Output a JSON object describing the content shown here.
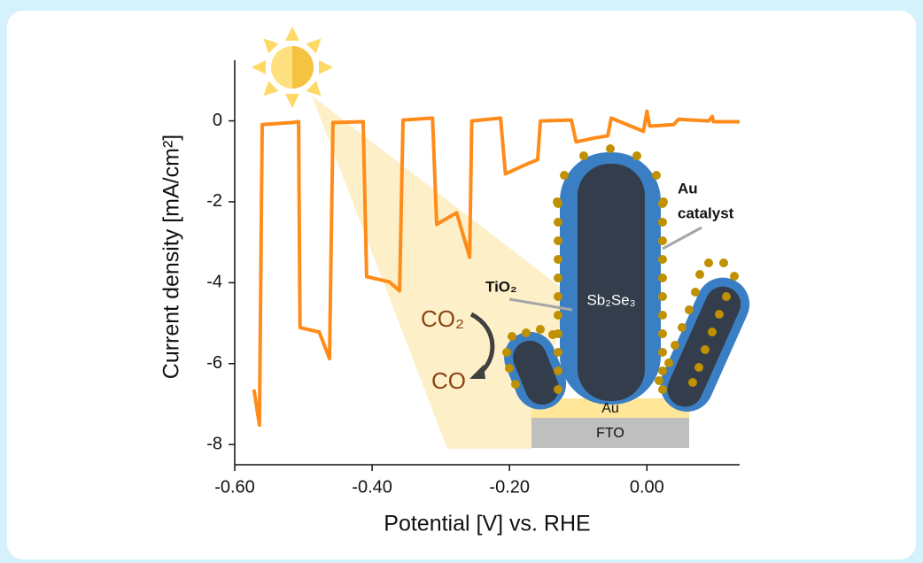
{
  "chart_data": {
    "type": "line",
    "xlabel": "Potential [V] vs. RHE",
    "ylabel": "Current density [mA/cm²]",
    "color": "#ff8c1a",
    "x": [
      -0.572,
      -0.564,
      -0.56,
      -0.516,
      -0.507,
      -0.505,
      -0.477,
      -0.462,
      -0.457,
      -0.413,
      -0.408,
      -0.375,
      -0.36,
      -0.355,
      -0.312,
      -0.306,
      -0.277,
      -0.258,
      -0.255,
      -0.213,
      -0.206,
      -0.178,
      -0.159,
      -0.155,
      -0.11,
      -0.103,
      -0.075,
      -0.057,
      -0.052,
      -0.005,
      0.0,
      0.004,
      0.039,
      0.046,
      0.09,
      0.095,
      0.097,
      0.135
    ],
    "values": [
      -6.64,
      -7.52,
      -0.09,
      -0.04,
      -0.02,
      -5.11,
      -5.22,
      -5.88,
      -0.04,
      -0.02,
      -3.85,
      -3.98,
      -4.2,
      0.02,
      0.07,
      -2.56,
      -2.27,
      -3.37,
      0.0,
      0.07,
      -1.31,
      -1.09,
      -0.96,
      0.0,
      0.02,
      -0.52,
      -0.42,
      -0.37,
      0.07,
      -0.26,
      0.24,
      -0.13,
      -0.09,
      0.04,
      0.0,
      0.11,
      -0.02,
      -0.02
    ],
    "xlim": [
      -0.6,
      0.135
    ],
    "ylim": [
      -8.5,
      1.5
    ],
    "xticks": [
      {
        "value": -0.6,
        "label": "-0.60"
      },
      {
        "value": -0.4,
        "label": "-0.40"
      },
      {
        "value": -0.2,
        "label": "-0.20"
      },
      {
        "value": 0,
        "label": "0.00"
      }
    ],
    "yticks": [
      0,
      -2,
      -4,
      -6,
      -8
    ],
    "annotations": {
      "catalyst": [
        "Au",
        "catalyst"
      ],
      "shell": "TiO₂",
      "rod": "Sb₂Se₃",
      "reactant": "CO₂",
      "product": "CO",
      "layer_top": "Au",
      "layer_bottom": "FTO"
    }
  }
}
